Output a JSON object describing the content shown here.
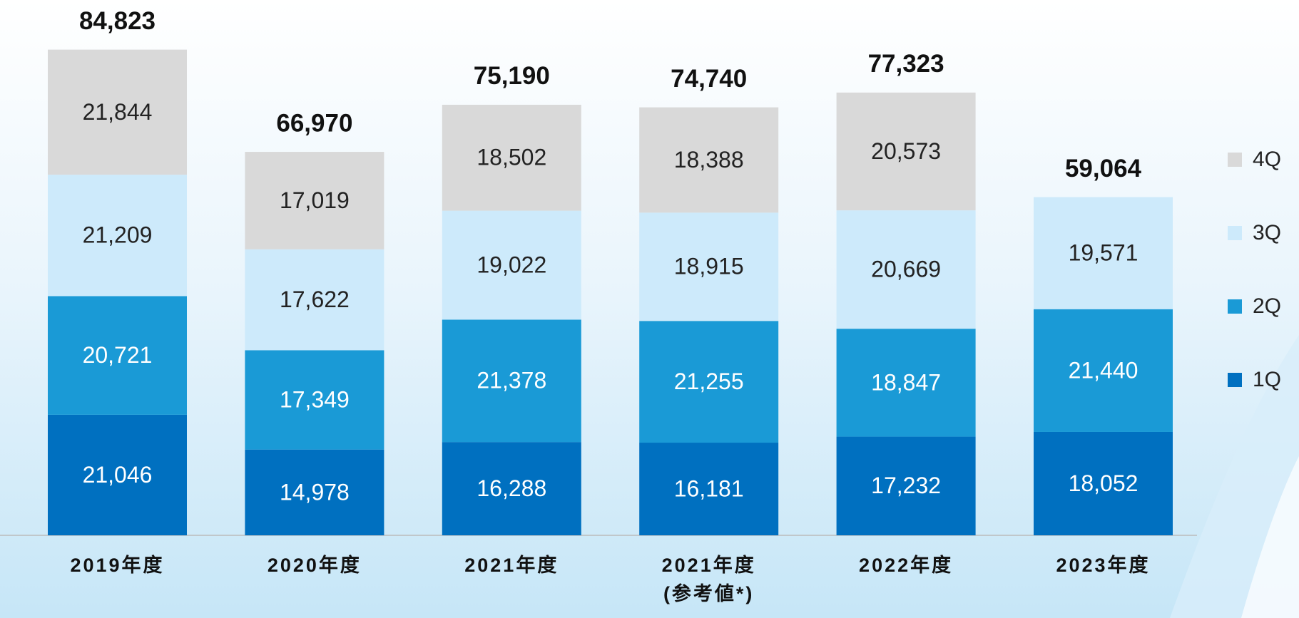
{
  "chart_data": {
    "type": "stacked_bar",
    "categories": [
      "2019年度",
      "2020年度",
      "2021年度",
      "2021年度\n(参考値*)",
      "2022年度",
      "2023年度"
    ],
    "series": [
      {
        "name": "1Q",
        "color": "#0070c0",
        "values": [
          21046,
          14978,
          16288,
          16181,
          17232,
          18052
        ],
        "value_labels": [
          "21,046",
          "14,978",
          "16,288",
          "16,181",
          "17,232",
          "18,052"
        ]
      },
      {
        "name": "2Q",
        "color": "#1a9ad6",
        "values": [
          20721,
          17349,
          21378,
          21255,
          18847,
          21440
        ],
        "value_labels": [
          "20,721",
          "17,349",
          "21,378",
          "21,255",
          "18,847",
          "21,440"
        ]
      },
      {
        "name": "3Q",
        "color": "#cdeafb",
        "values": [
          21209,
          17622,
          19022,
          18915,
          20669,
          19571
        ],
        "value_labels": [
          "21,209",
          "17,622",
          "19,022",
          "18,915",
          "20,669",
          "19,571"
        ]
      },
      {
        "name": "4Q",
        "color": "#d9d9d9",
        "values": [
          21844,
          17019,
          18502,
          18388,
          20573,
          null
        ],
        "value_labels": [
          "21,844",
          "17,019",
          "18,502",
          "18,388",
          "20,573",
          null
        ]
      }
    ],
    "totals": [
      84823,
      66970,
      75190,
      74740,
      77323,
      59064
    ],
    "total_labels": [
      "84,823",
      "66,970",
      "75,190",
      "74,740",
      "77,323",
      "59,064"
    ],
    "ylim": [
      0,
      90000
    ],
    "legend": "right"
  }
}
